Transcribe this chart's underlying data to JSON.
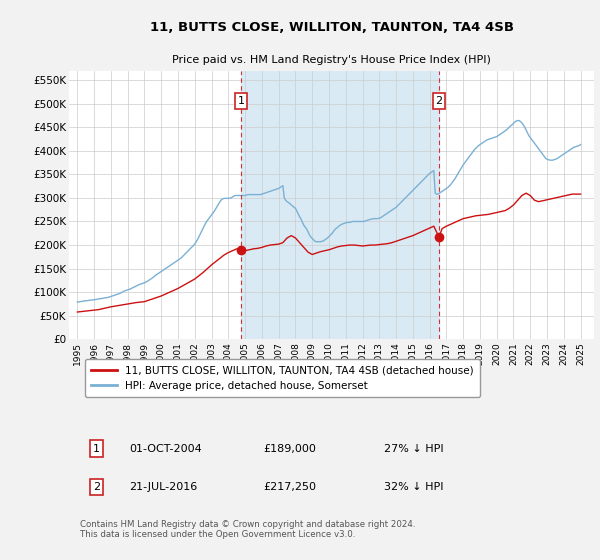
{
  "title": "11, BUTTS CLOSE, WILLITON, TAUNTON, TA4 4SB",
  "subtitle": "Price paid vs. HM Land Registry's House Price Index (HPI)",
  "ylabel_ticks": [
    "£0",
    "£50K",
    "£100K",
    "£150K",
    "£200K",
    "£250K",
    "£300K",
    "£350K",
    "£400K",
    "£450K",
    "£500K",
    "£550K"
  ],
  "ytick_values": [
    0,
    50000,
    100000,
    150000,
    200000,
    250000,
    300000,
    350000,
    400000,
    450000,
    500000,
    550000
  ],
  "ylim": [
    0,
    570000
  ],
  "hpi_color": "#7ab0d4",
  "hpi_fill_color": "#daeaf5",
  "price_color": "#cc1111",
  "dashed_color": "#cc3333",
  "purchase1_price": 189000,
  "purchase2_price": 217250,
  "legend_label1": "11, BUTTS CLOSE, WILLITON, TAUNTON, TA4 4SB (detached house)",
  "legend_label2": "HPI: Average price, detached house, Somerset",
  "table_row1": [
    "1",
    "01-OCT-2004",
    "£189,000",
    "27% ↓ HPI"
  ],
  "table_row2": [
    "2",
    "21-JUL-2016",
    "£217,250",
    "32% ↓ HPI"
  ],
  "footnote": "Contains HM Land Registry data © Crown copyright and database right 2024.\nThis data is licensed under the Open Government Licence v3.0.",
  "background_color": "#f2f2f2",
  "plot_bg_color": "#ffffff",
  "purchase1_x": 2004.75,
  "purchase2_x": 2016.55,
  "xlim_left": 1994.5,
  "xlim_right": 2025.8,
  "hpi_x": [
    1995.0,
    1995.083,
    1995.167,
    1995.25,
    1995.333,
    1995.417,
    1995.5,
    1995.583,
    1995.667,
    1995.75,
    1995.833,
    1995.917,
    1996.0,
    1996.083,
    1996.167,
    1996.25,
    1996.333,
    1996.417,
    1996.5,
    1996.583,
    1996.667,
    1996.75,
    1996.833,
    1996.917,
    1997.0,
    1997.083,
    1997.167,
    1997.25,
    1997.333,
    1997.417,
    1997.5,
    1997.583,
    1997.667,
    1997.75,
    1997.833,
    1997.917,
    1998.0,
    1998.083,
    1998.167,
    1998.25,
    1998.333,
    1998.417,
    1998.5,
    1998.583,
    1998.667,
    1998.75,
    1998.833,
    1998.917,
    1999.0,
    1999.083,
    1999.167,
    1999.25,
    1999.333,
    1999.417,
    1999.5,
    1999.583,
    1999.667,
    1999.75,
    1999.833,
    1999.917,
    2000.0,
    2000.083,
    2000.167,
    2000.25,
    2000.333,
    2000.417,
    2000.5,
    2000.583,
    2000.667,
    2000.75,
    2000.833,
    2000.917,
    2001.0,
    2001.083,
    2001.167,
    2001.25,
    2001.333,
    2001.417,
    2001.5,
    2001.583,
    2001.667,
    2001.75,
    2001.833,
    2001.917,
    2002.0,
    2002.083,
    2002.167,
    2002.25,
    2002.333,
    2002.417,
    2002.5,
    2002.583,
    2002.667,
    2002.75,
    2002.833,
    2002.917,
    2003.0,
    2003.083,
    2003.167,
    2003.25,
    2003.333,
    2003.417,
    2003.5,
    2003.583,
    2003.667,
    2003.75,
    2003.833,
    2003.917,
    2004.0,
    2004.083,
    2004.167,
    2004.25,
    2004.333,
    2004.417,
    2004.5,
    2004.583,
    2004.667,
    2004.75,
    2004.833,
    2004.917,
    2005.0,
    2005.083,
    2005.167,
    2005.25,
    2005.333,
    2005.417,
    2005.5,
    2005.583,
    2005.667,
    2005.75,
    2005.833,
    2005.917,
    2006.0,
    2006.083,
    2006.167,
    2006.25,
    2006.333,
    2006.417,
    2006.5,
    2006.583,
    2006.667,
    2006.75,
    2006.833,
    2006.917,
    2007.0,
    2007.083,
    2007.167,
    2007.25,
    2007.333,
    2007.417,
    2007.5,
    2007.583,
    2007.667,
    2007.75,
    2007.833,
    2007.917,
    2008.0,
    2008.083,
    2008.167,
    2008.25,
    2008.333,
    2008.417,
    2008.5,
    2008.583,
    2008.667,
    2008.75,
    2008.833,
    2008.917,
    2009.0,
    2009.083,
    2009.167,
    2009.25,
    2009.333,
    2009.417,
    2009.5,
    2009.583,
    2009.667,
    2009.75,
    2009.833,
    2009.917,
    2010.0,
    2010.083,
    2010.167,
    2010.25,
    2010.333,
    2010.417,
    2010.5,
    2010.583,
    2010.667,
    2010.75,
    2010.833,
    2010.917,
    2011.0,
    2011.083,
    2011.167,
    2011.25,
    2011.333,
    2011.417,
    2011.5,
    2011.583,
    2011.667,
    2011.75,
    2011.833,
    2011.917,
    2012.0,
    2012.083,
    2012.167,
    2012.25,
    2012.333,
    2012.417,
    2012.5,
    2012.583,
    2012.667,
    2012.75,
    2012.833,
    2012.917,
    2013.0,
    2013.083,
    2013.167,
    2013.25,
    2013.333,
    2013.417,
    2013.5,
    2013.583,
    2013.667,
    2013.75,
    2013.833,
    2013.917,
    2014.0,
    2014.083,
    2014.167,
    2014.25,
    2014.333,
    2014.417,
    2014.5,
    2014.583,
    2014.667,
    2014.75,
    2014.833,
    2014.917,
    2015.0,
    2015.083,
    2015.167,
    2015.25,
    2015.333,
    2015.417,
    2015.5,
    2015.583,
    2015.667,
    2015.75,
    2015.833,
    2015.917,
    2016.0,
    2016.083,
    2016.167,
    2016.25,
    2016.333,
    2016.417,
    2016.5,
    2016.583,
    2016.667,
    2016.75,
    2016.833,
    2016.917,
    2017.0,
    2017.083,
    2017.167,
    2017.25,
    2017.333,
    2017.417,
    2017.5,
    2017.583,
    2017.667,
    2017.75,
    2017.833,
    2017.917,
    2018.0,
    2018.083,
    2018.167,
    2018.25,
    2018.333,
    2018.417,
    2018.5,
    2018.583,
    2018.667,
    2018.75,
    2018.833,
    2018.917,
    2019.0,
    2019.083,
    2019.167,
    2019.25,
    2019.333,
    2019.417,
    2019.5,
    2019.583,
    2019.667,
    2019.75,
    2019.833,
    2019.917,
    2020.0,
    2020.083,
    2020.167,
    2020.25,
    2020.333,
    2020.417,
    2020.5,
    2020.583,
    2020.667,
    2020.75,
    2020.833,
    2020.917,
    2021.0,
    2021.083,
    2021.167,
    2021.25,
    2021.333,
    2021.417,
    2021.5,
    2021.583,
    2021.667,
    2021.75,
    2021.833,
    2021.917,
    2022.0,
    2022.083,
    2022.167,
    2022.25,
    2022.333,
    2022.417,
    2022.5,
    2022.583,
    2022.667,
    2022.75,
    2022.833,
    2022.917,
    2023.0,
    2023.083,
    2023.167,
    2023.25,
    2023.333,
    2023.417,
    2023.5,
    2023.583,
    2023.667,
    2023.75,
    2023.833,
    2023.917,
    2024.0,
    2024.083,
    2024.167,
    2024.25,
    2024.333,
    2024.417,
    2024.5,
    2024.583,
    2024.667,
    2024.75,
    2024.833,
    2024.917,
    2025.0
  ],
  "hpi_y": [
    79000,
    79500,
    80000,
    80500,
    81000,
    81500,
    82000,
    82000,
    82500,
    83000,
    83500,
    83500,
    84000,
    84500,
    85000,
    85500,
    86000,
    86500,
    87000,
    87500,
    88000,
    88500,
    89000,
    90000,
    91000,
    92000,
    93000,
    94000,
    95000,
    96000,
    97000,
    98500,
    100000,
    101500,
    103000,
    104000,
    105000,
    106000,
    107000,
    108500,
    110000,
    111500,
    113000,
    114500,
    116000,
    117000,
    118000,
    119000,
    120000,
    121500,
    123000,
    125000,
    127000,
    129000,
    131000,
    133500,
    136000,
    138000,
    140000,
    142000,
    144000,
    146000,
    148000,
    150000,
    152000,
    154000,
    156000,
    158000,
    160000,
    162000,
    164000,
    166000,
    168000,
    170000,
    172000,
    175000,
    178000,
    181000,
    184000,
    187000,
    190000,
    193000,
    196000,
    199000,
    202000,
    207000,
    212000,
    218000,
    224000,
    230000,
    236000,
    242000,
    248000,
    252000,
    256000,
    260000,
    264000,
    268000,
    272000,
    277000,
    282000,
    287000,
    292000,
    296000,
    298000,
    299000,
    299000,
    299000,
    299000,
    299500,
    300000,
    302000,
    304000,
    305000,
    305000,
    305000,
    305000,
    305000,
    305000,
    305000,
    305000,
    306000,
    307000,
    307000,
    307000,
    307000,
    307000,
    307000,
    307000,
    307000,
    307000,
    307000,
    308000,
    309000,
    310000,
    311000,
    312000,
    313000,
    314000,
    315000,
    316000,
    317000,
    318000,
    319000,
    320000,
    322000,
    324000,
    326000,
    300000,
    295000,
    292000,
    290000,
    288000,
    285000,
    283000,
    280000,
    278000,
    272000,
    266000,
    260000,
    255000,
    248000,
    242000,
    238000,
    234000,
    228000,
    222000,
    217000,
    214000,
    211000,
    208000,
    207000,
    207000,
    207000,
    207000,
    208000,
    209000,
    211000,
    213000,
    215000,
    218000,
    221000,
    224000,
    228000,
    232000,
    235000,
    237000,
    240000,
    242000,
    244000,
    245000,
    246000,
    247000,
    248000,
    248000,
    248000,
    249000,
    250000,
    250000,
    250000,
    250000,
    250000,
    250000,
    250000,
    250000,
    250000,
    251000,
    252000,
    253000,
    254000,
    255000,
    255000,
    256000,
    256000,
    256000,
    256000,
    257000,
    258000,
    260000,
    262000,
    264000,
    266000,
    268000,
    270000,
    272000,
    274000,
    276000,
    278000,
    280000,
    283000,
    286000,
    289000,
    292000,
    295000,
    298000,
    301000,
    304000,
    307000,
    310000,
    313000,
    316000,
    319000,
    322000,
    325000,
    328000,
    331000,
    334000,
    337000,
    340000,
    343000,
    346000,
    349000,
    352000,
    354000,
    356000,
    358000,
    310000,
    308000,
    308000,
    310000,
    312000,
    314000,
    316000,
    318000,
    320000,
    322000,
    325000,
    328000,
    332000,
    336000,
    340000,
    345000,
    350000,
    355000,
    360000,
    365000,
    370000,
    374000,
    378000,
    382000,
    386000,
    390000,
    394000,
    398000,
    402000,
    405000,
    408000,
    411000,
    413000,
    415000,
    417000,
    419000,
    421000,
    423000,
    424000,
    425000,
    426000,
    427000,
    428000,
    429000,
    430000,
    432000,
    434000,
    436000,
    438000,
    440000,
    442000,
    444000,
    447000,
    450000,
    453000,
    455000,
    458000,
    461000,
    463000,
    464000,
    464000,
    462000,
    459000,
    455000,
    450000,
    444000,
    438000,
    432000,
    428000,
    424000,
    420000,
    416000,
    412000,
    408000,
    404000,
    400000,
    396000,
    392000,
    388000,
    384000,
    382000,
    381000,
    380000,
    380000,
    380000,
    381000,
    382000,
    383000,
    385000,
    387000,
    389000,
    391000,
    393000,
    395000,
    397000,
    399000,
    401000,
    403000,
    405000,
    407000,
    408000,
    409000,
    410000,
    411000,
    413000
  ],
  "price_x": [
    1995.0,
    1995.5,
    1996.0,
    1996.25,
    1996.5,
    1996.75,
    1997.0,
    1997.5,
    1998.0,
    1998.5,
    1999.0,
    1999.25,
    1999.5,
    1999.75,
    2000.0,
    2000.25,
    2000.5,
    2000.75,
    2001.0,
    2001.25,
    2001.5,
    2001.75,
    2002.0,
    2002.25,
    2002.5,
    2002.75,
    2003.0,
    2003.25,
    2003.5,
    2003.75,
    2004.0,
    2004.25,
    2004.5,
    2004.75,
    2005.0,
    2005.25,
    2005.5,
    2005.75,
    2006.0,
    2006.25,
    2006.5,
    2006.75,
    2007.0,
    2007.25,
    2007.5,
    2007.75,
    2008.0,
    2008.25,
    2008.5,
    2008.75,
    2009.0,
    2009.25,
    2009.5,
    2009.75,
    2010.0,
    2010.25,
    2010.5,
    2010.75,
    2011.0,
    2011.25,
    2011.5,
    2011.75,
    2012.0,
    2012.25,
    2012.5,
    2012.75,
    2013.0,
    2013.25,
    2013.5,
    2013.75,
    2014.0,
    2014.25,
    2014.5,
    2014.75,
    2015.0,
    2015.25,
    2015.5,
    2015.75,
    2016.0,
    2016.25,
    2016.55,
    2016.75,
    2017.0,
    2017.25,
    2017.5,
    2017.75,
    2018.0,
    2018.25,
    2018.5,
    2018.75,
    2019.0,
    2019.25,
    2019.5,
    2019.75,
    2020.0,
    2020.25,
    2020.5,
    2020.75,
    2021.0,
    2021.25,
    2021.5,
    2021.75,
    2022.0,
    2022.25,
    2022.5,
    2022.75,
    2023.0,
    2023.25,
    2023.5,
    2023.75,
    2024.0,
    2024.25,
    2024.5,
    2024.75,
    2025.0
  ],
  "price_y": [
    58000,
    60000,
    62000,
    63000,
    65000,
    67000,
    69000,
    72000,
    75000,
    78000,
    80000,
    83000,
    86000,
    89000,
    92000,
    96000,
    100000,
    104000,
    108000,
    113000,
    118000,
    123000,
    128000,
    135000,
    142000,
    150000,
    158000,
    165000,
    172000,
    179000,
    184000,
    188000,
    192000,
    189000,
    188000,
    190000,
    192000,
    193000,
    195000,
    198000,
    200000,
    201000,
    202000,
    205000,
    215000,
    220000,
    215000,
    205000,
    195000,
    185000,
    180000,
    183000,
    186000,
    188000,
    190000,
    193000,
    196000,
    198000,
    199000,
    200000,
    200000,
    199000,
    198000,
    199000,
    200000,
    200000,
    201000,
    202000,
    203000,
    205000,
    208000,
    211000,
    214000,
    217000,
    220000,
    224000,
    228000,
    232000,
    236000,
    240000,
    217250,
    235000,
    240000,
    244000,
    248000,
    252000,
    256000,
    258000,
    260000,
    262000,
    263000,
    264000,
    265000,
    267000,
    269000,
    271000,
    273000,
    278000,
    285000,
    295000,
    305000,
    310000,
    305000,
    295000,
    292000,
    294000,
    296000,
    298000,
    300000,
    302000,
    304000,
    306000,
    308000,
    308000,
    308000
  ]
}
